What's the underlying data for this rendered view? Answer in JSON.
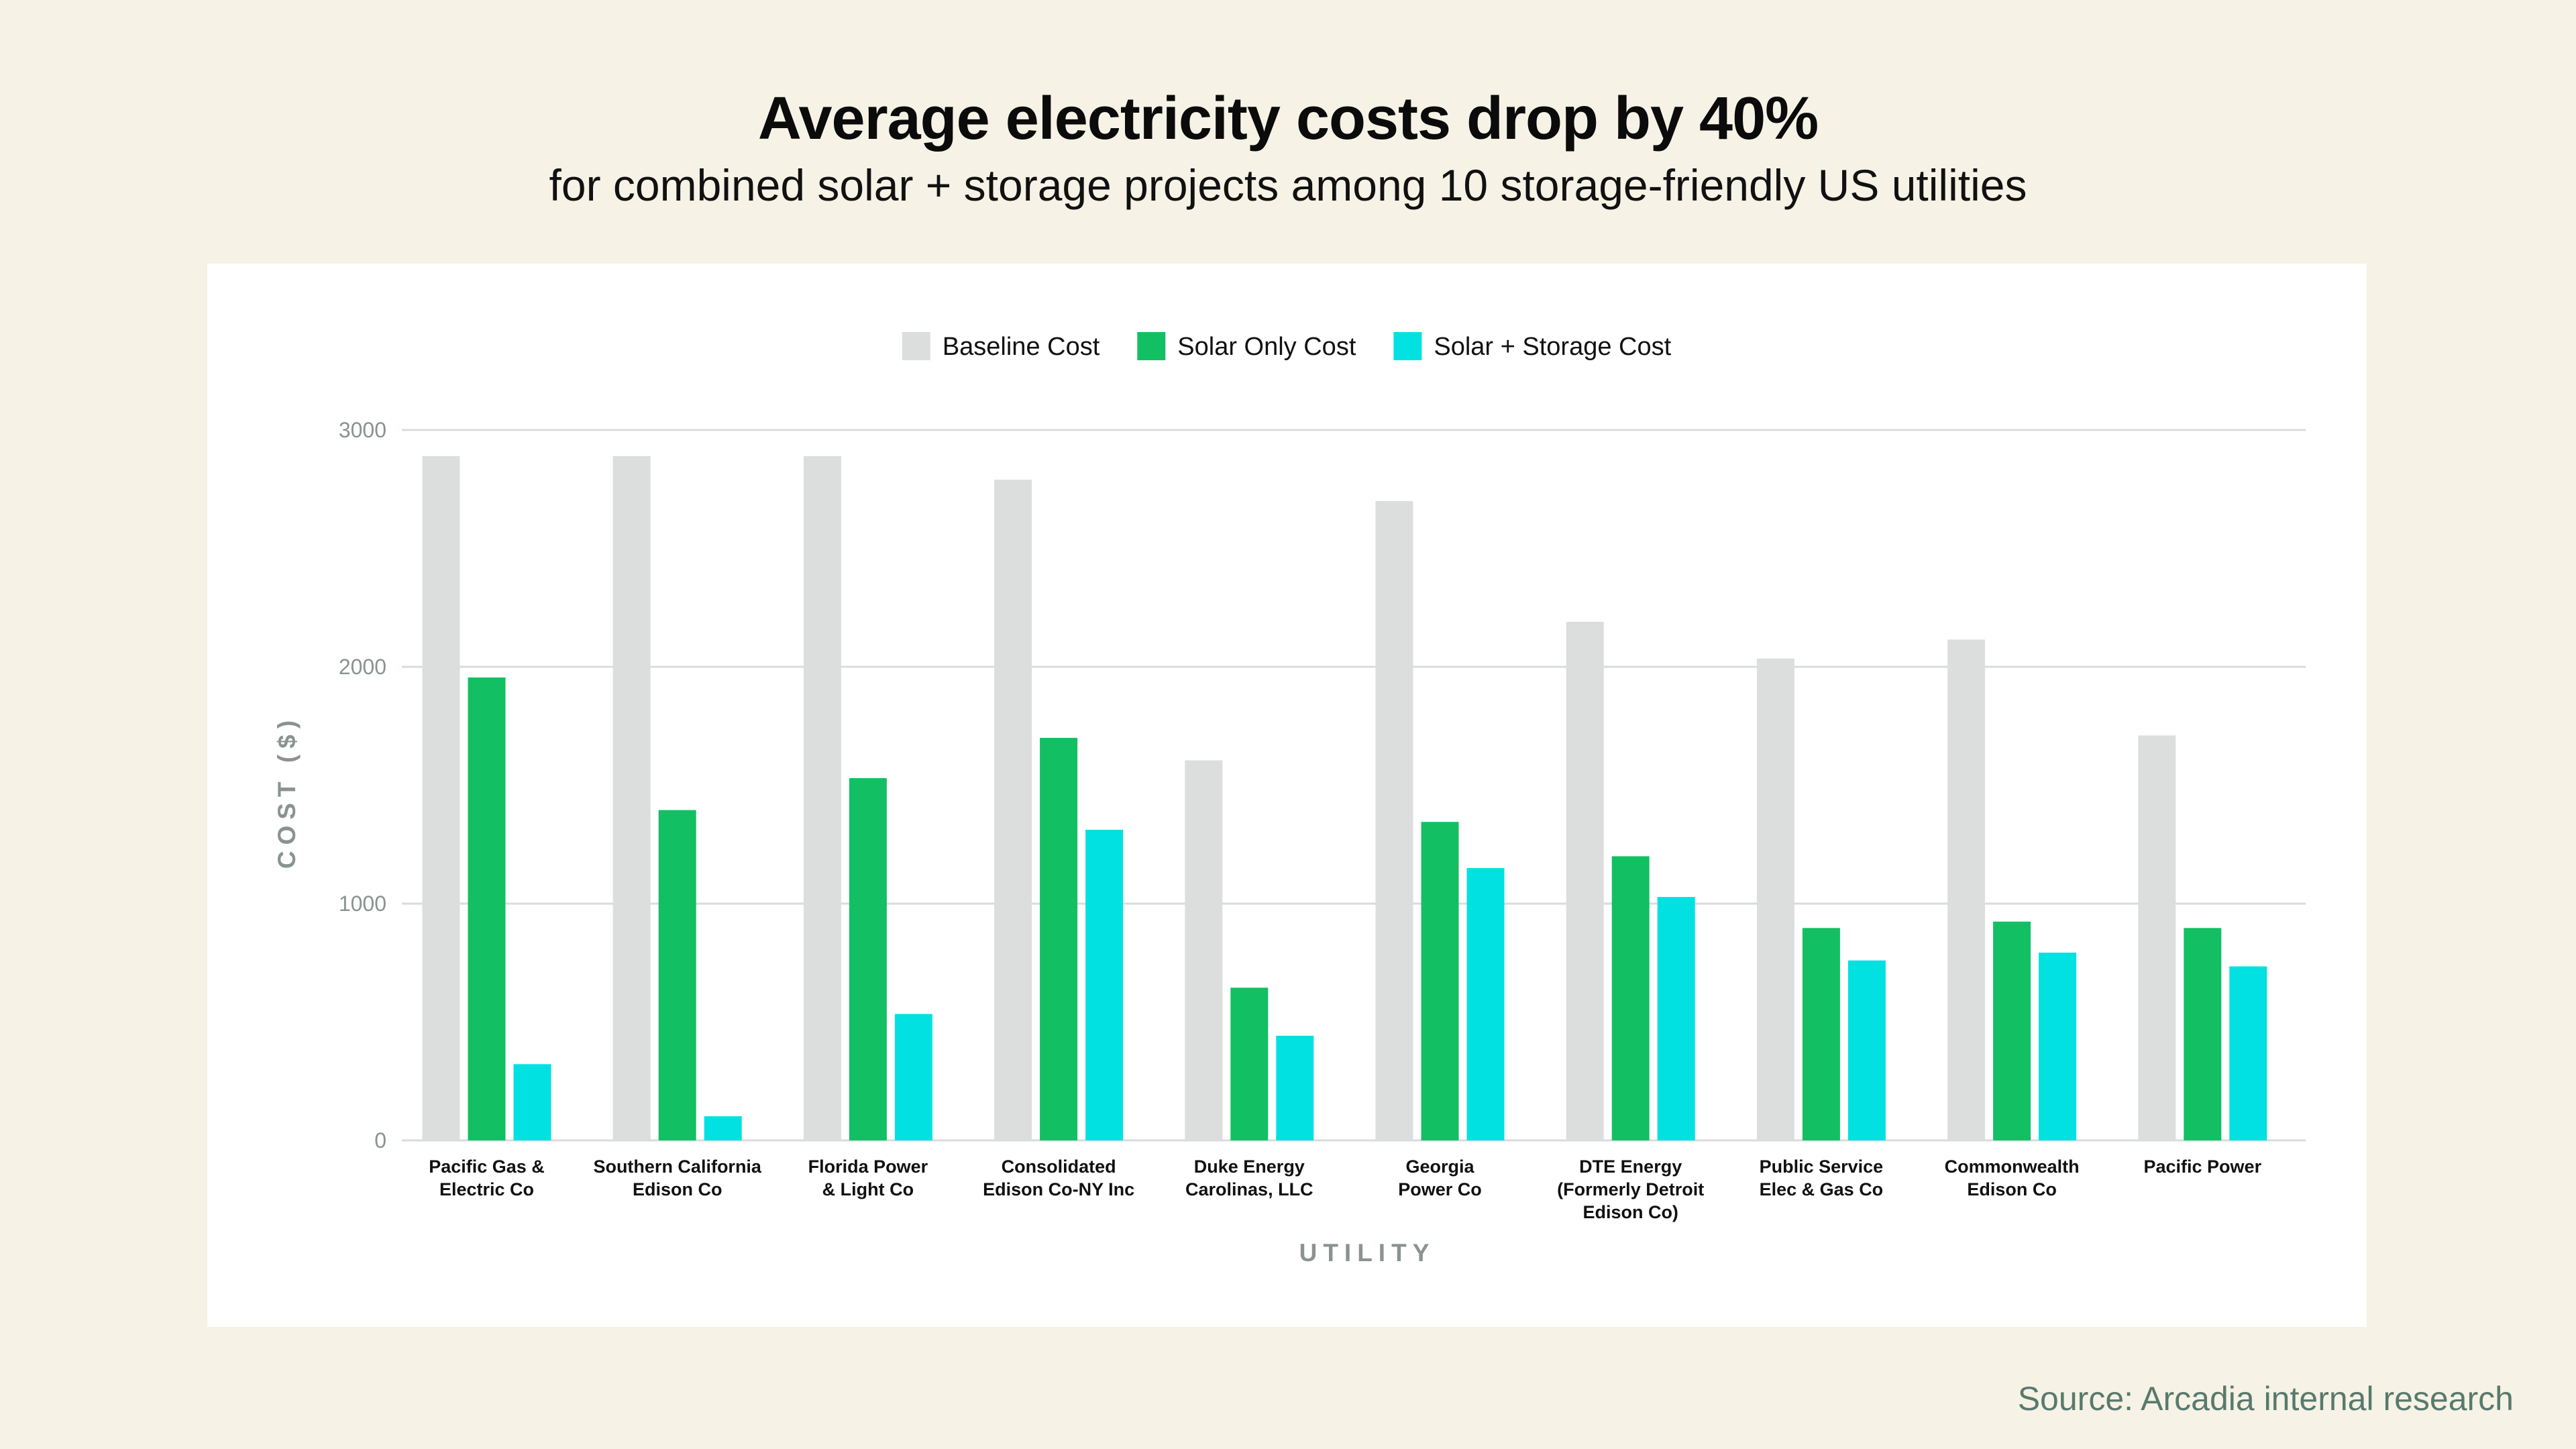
{
  "header": {
    "title": "Average electricity costs drop by 40%",
    "subtitle": "for combined solar + storage projects among 10 storage-friendly US utilities"
  },
  "footer": {
    "source": "Source: Arcadia internal research"
  },
  "chart_data": {
    "type": "bar",
    "title": "Average electricity costs drop by 40%",
    "subtitle": "for combined solar + storage projects among 10 storage-friendly US utilities",
    "xlabel": "UTILITY",
    "ylabel": "COST ($)",
    "ylim": [
      0,
      3000
    ],
    "yticks": [
      0,
      1000,
      2000,
      3000
    ],
    "grid": true,
    "legend_position": "top-center",
    "categories": [
      [
        "Pacific Gas &",
        "Electric Co"
      ],
      [
        "Southern California",
        "Edison Co"
      ],
      [
        "Florida Power",
        "& Light Co"
      ],
      [
        "Consolidated",
        "Edison Co-NY Inc"
      ],
      [
        "Duke Energy",
        "Carolinas, LLC"
      ],
      [
        "Georgia",
        "Power Co"
      ],
      [
        "DTE Energy",
        "(Formerly Detroit",
        "Edison Co)"
      ],
      [
        "Public Service",
        "Elec & Gas Co"
      ],
      [
        "Commonwealth",
        "Edison Co"
      ],
      [
        "Pacific Power"
      ]
    ],
    "series": [
      {
        "name": "Baseline Cost",
        "color": "#dcdedd",
        "values": [
          2890,
          2890,
          2890,
          2790,
          1605,
          2700,
          2190,
          2035,
          2115,
          1710
        ]
      },
      {
        "name": "Solar Only Cost",
        "color": "#13bf63",
        "values": [
          1955,
          1395,
          1530,
          1700,
          645,
          1345,
          1200,
          897,
          924,
          897
        ]
      },
      {
        "name": "Solar + Storage Cost",
        "color": "#02e1e1",
        "values": [
          322,
          102,
          534,
          1312,
          442,
          1150,
          1028,
          760,
          793,
          735
        ]
      }
    ]
  }
}
